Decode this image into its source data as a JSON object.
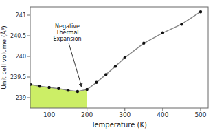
{
  "chart_data": {
    "type": "line",
    "x": [
      50,
      75,
      100,
      125,
      150,
      175,
      200,
      225,
      250,
      275,
      300,
      350,
      400,
      450,
      500
    ],
    "series": [
      {
        "type": "area",
        "color": "#ccee66",
        "values": [
          239.32,
          239.28,
          239.25,
          239.22,
          239.18,
          239.15,
          239.2,
          null,
          null,
          null,
          null,
          null,
          null,
          null,
          null
        ]
      },
      {
        "type": "line",
        "color": "#888888",
        "values": [
          239.32,
          239.28,
          239.25,
          239.22,
          239.18,
          239.15,
          239.2,
          239.37,
          239.56,
          239.76,
          239.97,
          240.32,
          240.57,
          240.78,
          241.08
        ]
      },
      {
        "type": "scatter",
        "color": "#111111",
        "marker": "circle",
        "values": [
          239.32,
          239.28,
          239.25,
          239.22,
          239.18,
          239.15,
          239.2,
          239.37,
          239.56,
          239.76,
          239.97,
          240.32,
          240.57,
          240.78,
          241.08
        ]
      }
    ],
    "xlim": [
      50,
      520
    ],
    "ylim": [
      238.75,
      241.2
    ],
    "xticks": [
      100,
      200,
      300,
      400,
      500
    ],
    "yticks": [
      239,
      239.5,
      240,
      240.5,
      241
    ],
    "xlabel": "Temperature (K)",
    "ylabel": "Unit cell volume (Å³)",
    "annotations": [
      {
        "text": "Negative\nThermal\nExpansion",
        "x": 188,
        "y": 239.19
      }
    ]
  }
}
